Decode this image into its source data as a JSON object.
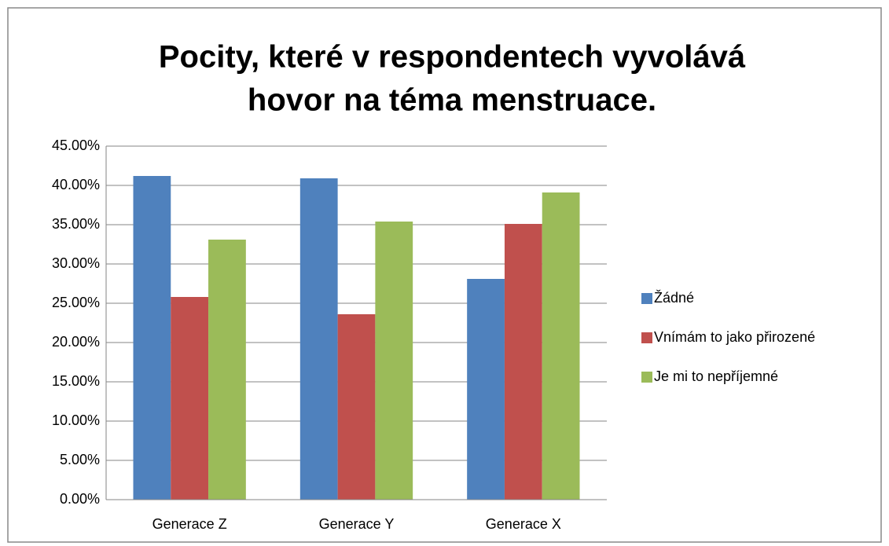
{
  "chart_data": {
    "type": "bar",
    "title": [
      "Pocity, které v respondentech vyvolává",
      "hovor na téma menstruace."
    ],
    "categories": [
      "Generace Z",
      "Generace Y",
      "Generace X"
    ],
    "series": [
      {
        "name": "Žádné",
        "color": "#4f81bd",
        "values": [
          41.2,
          40.9,
          28.1
        ]
      },
      {
        "name": "Vnímám to jako přirozené",
        "color": "#c0504d",
        "values": [
          25.8,
          23.6,
          35.1
        ]
      },
      {
        "name": "Je mi to nepříjemné",
        "color": "#9bbb59",
        "values": [
          33.1,
          35.4,
          39.1
        ]
      }
    ],
    "ylim": [
      0,
      45
    ],
    "yticks": [
      {
        "value": 0,
        "label": "0.00%"
      },
      {
        "value": 5,
        "label": "5.00%"
      },
      {
        "value": 10,
        "label": "10.00%"
      },
      {
        "value": 15,
        "label": "15.00%"
      },
      {
        "value": 20,
        "label": "20.00%"
      },
      {
        "value": 25,
        "label": "25.00%"
      },
      {
        "value": 30,
        "label": "30.00%"
      },
      {
        "value": 35,
        "label": "35.00%"
      },
      {
        "value": 40,
        "label": "40.00%"
      },
      {
        "value": 45,
        "label": "45.00%"
      }
    ],
    "grid": true,
    "legend": "right"
  }
}
